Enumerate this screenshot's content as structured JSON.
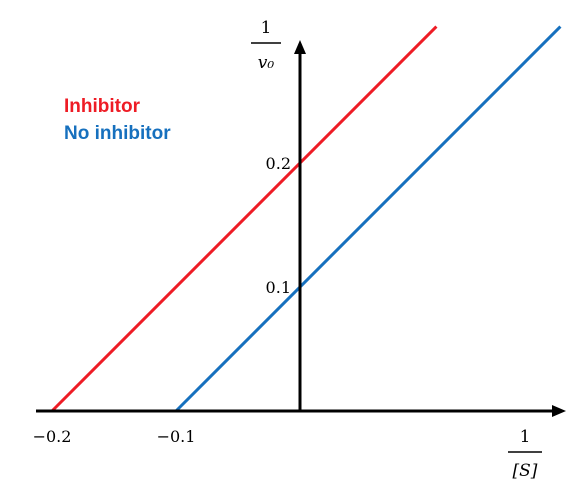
{
  "chart_data": {
    "type": "line",
    "xlabel": {
      "numerator": "1",
      "denominator": "[S]"
    },
    "ylabel": {
      "numerator": "1",
      "denominator": "v₀"
    },
    "x_ticks": [
      {
        "value": -0.2,
        "label": "−0.2"
      },
      {
        "value": -0.1,
        "label": "−0.1"
      }
    ],
    "y_ticks": [
      {
        "value": 0.2,
        "label": "0.2"
      },
      {
        "value": 0.1,
        "label": "0.1"
      }
    ],
    "xlim": [
      -0.21,
      0.21
    ],
    "ylim": [
      0,
      0.31
    ],
    "series": [
      {
        "name": "Inhibitor",
        "color": "#ee1c25",
        "x": [
          -0.2,
          0.11
        ],
        "y": [
          0,
          0.31
        ]
      },
      {
        "name": "No inhibitor",
        "color": "#1670be",
        "x": [
          -0.1,
          0.21
        ],
        "y": [
          0,
          0.31
        ]
      }
    ],
    "axis_color": "#000000",
    "grid": false,
    "legend_position": "top-left"
  }
}
